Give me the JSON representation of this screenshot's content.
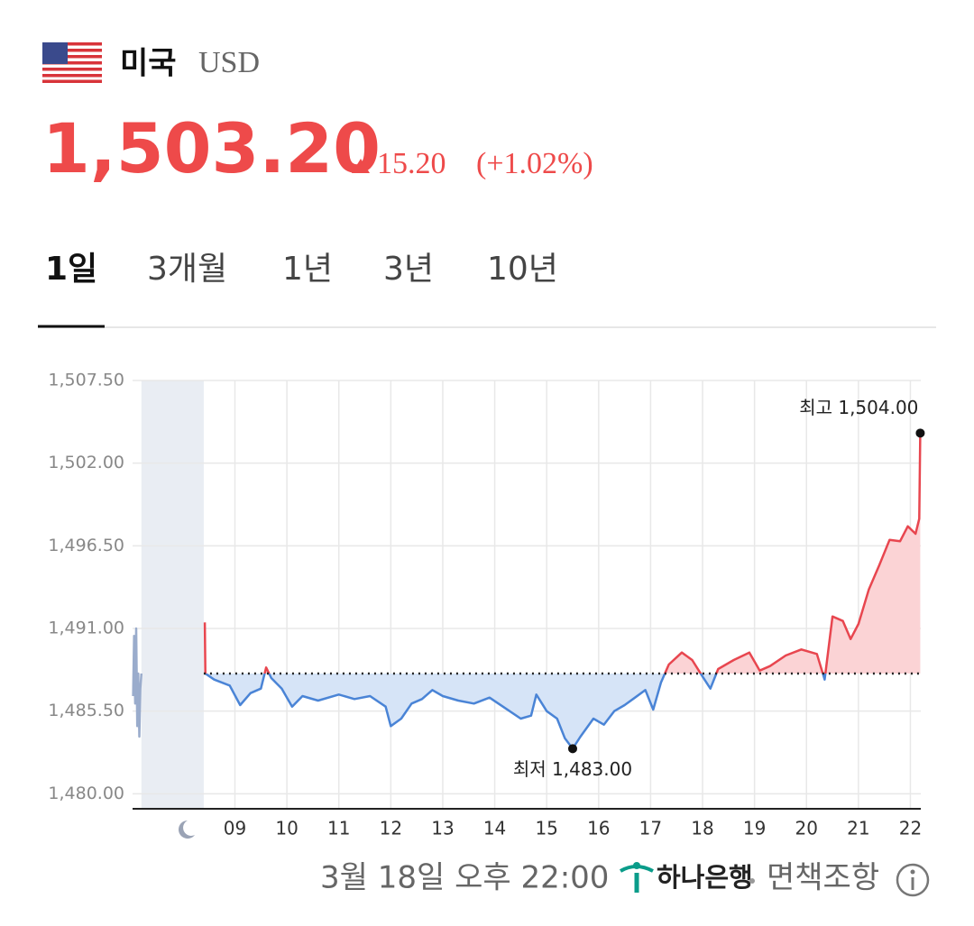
{
  "header": {
    "country": "미국",
    "currency": "USD",
    "price": "1,503.20",
    "change": "15.20",
    "change_pct": "(+1.02%)"
  },
  "tabs": [
    "1일",
    "3개월",
    "1년",
    "3년",
    "10년"
  ],
  "chart_data": {
    "type": "line",
    "xlim": [
      7.03,
      22.2
    ],
    "ylim": [
      1479,
      1507.5
    ],
    "xticks": [
      {
        "value": 9,
        "label": "09"
      },
      {
        "value": 10,
        "label": "10"
      },
      {
        "value": 11,
        "label": "11"
      },
      {
        "value": 12,
        "label": "12"
      },
      {
        "value": 13,
        "label": "13"
      },
      {
        "value": 14,
        "label": "14"
      },
      {
        "value": 15,
        "label": "15"
      },
      {
        "value": 16,
        "label": "16"
      },
      {
        "value": 17,
        "label": "17"
      },
      {
        "value": 18,
        "label": "18"
      },
      {
        "value": 19,
        "label": "19"
      },
      {
        "value": 20,
        "label": "20"
      },
      {
        "value": 21,
        "label": "21"
      },
      {
        "value": 22,
        "label": "22"
      }
    ],
    "yticks": [
      {
        "value": 1480,
        "label": "1,480.00"
      },
      {
        "value": 1485.5,
        "label": "1,485.50"
      },
      {
        "value": 1491,
        "label": "1,491.00"
      },
      {
        "value": 1496.5,
        "label": "1,496.50"
      },
      {
        "value": 1502,
        "label": "1,502.00"
      },
      {
        "value": 1507.5,
        "label": "1,507.50"
      }
    ],
    "grid": true,
    "baseline": 1488,
    "shade": [
      7.2,
      8.4
    ],
    "colors": {
      "up": "#e8464f",
      "down": "#4a84d6",
      "up_fill": "#fbd3d5",
      "down_fill": "#d6e4f7"
    },
    "series": [
      {
        "color": "#9aaccc",
        "x": [
          7.04,
          7.06,
          7.08,
          7.1,
          7.12,
          7.14,
          7.16,
          7.18,
          7.2
        ],
        "values": [
          1486.5,
          1490.5,
          1486,
          1491,
          1484.5,
          1488,
          1483.8,
          1487,
          1488
        ]
      },
      {
        "x": [
          8.42,
          8.43,
          8.6,
          8.9,
          9.1,
          9.3,
          9.5,
          9.6,
          9.7,
          9.9,
          10.1,
          10.3,
          10.6,
          11.0,
          11.3,
          11.6,
          11.9,
          12.0,
          12.2,
          12.4,
          12.6,
          12.8,
          13.0,
          13.3,
          13.6,
          13.9,
          14.2,
          14.5,
          14.7,
          14.8,
          15.0,
          15.2,
          15.35,
          15.5,
          15.65,
          15.9,
          16.1,
          16.3,
          16.5,
          16.7,
          16.9,
          17.05,
          17.2,
          17.35,
          17.6,
          17.8,
          18.0,
          18.15,
          18.3,
          18.6,
          18.9,
          19.1,
          19.3,
          19.6,
          19.9,
          20.2,
          20.35,
          20.5,
          20.7,
          20.85,
          21.0,
          21.2,
          21.4,
          21.6,
          21.8,
          21.95,
          22.1,
          22.17,
          22.19
        ],
        "values": [
          1491.4,
          1488.0,
          1487.6,
          1487.2,
          1485.9,
          1486.7,
          1487.0,
          1488.4,
          1487.7,
          1487.0,
          1485.8,
          1486.5,
          1486.2,
          1486.6,
          1486.3,
          1486.5,
          1485.8,
          1484.5,
          1485.0,
          1486.0,
          1486.3,
          1486.9,
          1486.5,
          1486.2,
          1486.0,
          1486.4,
          1485.7,
          1485.0,
          1485.2,
          1486.6,
          1485.5,
          1485.0,
          1483.7,
          1483.0,
          1483.8,
          1485.0,
          1484.6,
          1485.5,
          1485.9,
          1486.4,
          1486.9,
          1485.6,
          1487.4,
          1488.6,
          1489.4,
          1488.9,
          1487.8,
          1487.0,
          1488.3,
          1488.9,
          1489.4,
          1488.2,
          1488.5,
          1489.2,
          1489.6,
          1489.3,
          1487.6,
          1491.8,
          1491.5,
          1490.3,
          1491.3,
          1493.6,
          1495.2,
          1496.9,
          1496.8,
          1497.8,
          1497.3,
          1498.3,
          1504.0
        ]
      }
    ],
    "annotations": [
      {
        "text": "최저 1,483.00",
        "x": 15.5,
        "y": 1483
      },
      {
        "text": "최고 1,504.00",
        "x": 22.19,
        "y": 1504
      }
    ]
  },
  "footer": {
    "timestamp": "3월 18일 오후 22:00",
    "bank": "하나은행",
    "disclaimer": "면책조항"
  }
}
